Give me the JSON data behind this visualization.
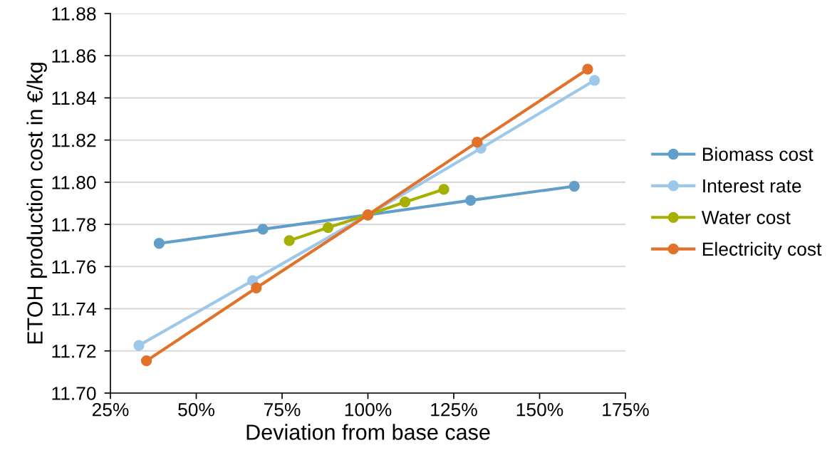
{
  "chart_data": {
    "type": "line",
    "xlabel": "Deviation from base case",
    "ylabel": "ETOH production cost in €/kg",
    "xlim": [
      25,
      175
    ],
    "xticks": [
      {
        "value": 25,
        "label": "25%"
      },
      {
        "value": 50,
        "label": "50%"
      },
      {
        "value": 75,
        "label": "75%"
      },
      {
        "value": 100,
        "label": "100%"
      },
      {
        "value": 125,
        "label": "125%"
      },
      {
        "value": 150,
        "label": "150%"
      },
      {
        "value": 175,
        "label": "175%"
      }
    ],
    "ylim": [
      11.7,
      11.88
    ],
    "yticks": [
      {
        "value": 11.7,
        "label": "11.70"
      },
      {
        "value": 11.72,
        "label": "11.72"
      },
      {
        "value": 11.74,
        "label": "11.74"
      },
      {
        "value": 11.76,
        "label": "11.76"
      },
      {
        "value": 11.78,
        "label": "11.78"
      },
      {
        "value": 11.8,
        "label": "11.80"
      },
      {
        "value": 11.82,
        "label": "11.82"
      },
      {
        "value": 11.84,
        "label": "11.84"
      },
      {
        "value": 11.86,
        "label": "11.86"
      },
      {
        "value": 11.88,
        "label": "11.88"
      }
    ],
    "grid": "y",
    "legend": "right",
    "marker": "circle",
    "line_style": "solid",
    "series": [
      {
        "name": "Biomass cost",
        "color": "#619fc9",
        "x": [
          39.2,
          69.4,
          100,
          129.9,
          160.1
        ],
        "values": [
          11.771,
          11.7777,
          11.7845,
          11.7914,
          11.7981
        ]
      },
      {
        "name": "Interest rate",
        "color": "#9dc8ea",
        "x": [
          33.3,
          66.4,
          100,
          132.9,
          166.0
        ],
        "values": [
          11.7226,
          11.7533,
          11.7845,
          11.8161,
          11.8483
        ]
      },
      {
        "name": "Water cost",
        "color": "#a5b000",
        "x": [
          77.1,
          88.4,
          100,
          110.8,
          122.1
        ],
        "values": [
          11.7723,
          11.7785,
          11.7845,
          11.7906,
          11.7966
        ]
      },
      {
        "name": "Electricity cost",
        "color": "#e2712a",
        "x": [
          35.5,
          67.5,
          100,
          131.8,
          164.0
        ],
        "values": [
          11.7153,
          11.7499,
          11.7845,
          11.819,
          11.8536
        ]
      }
    ]
  }
}
